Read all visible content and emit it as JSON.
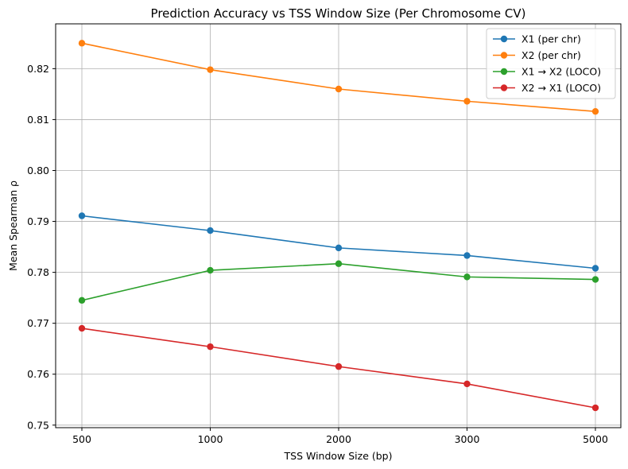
{
  "chart_data": {
    "type": "line",
    "title": "Prediction Accuracy vs TSS Window Size (Per Chromosome CV)",
    "xlabel": "TSS Window Size (bp)",
    "ylabel": "Mean Spearman ρ",
    "categories": [
      "500",
      "1000",
      "2000",
      "3000",
      "5000"
    ],
    "ylim": [
      0.7495,
      0.8288
    ],
    "yticks": [
      "0.75",
      "0.76",
      "0.77",
      "0.78",
      "0.79",
      "0.80",
      "0.81",
      "0.82"
    ],
    "grid": true,
    "legend_position": "top-right",
    "series": [
      {
        "name": "X1 (per chr)",
        "color": "#1f77b4",
        "values": [
          0.7911,
          0.7882,
          0.7848,
          0.7833,
          0.7808
        ]
      },
      {
        "name": "X2  (per chr)",
        "color": "#ff7f0e",
        "values": [
          0.825,
          0.8198,
          0.816,
          0.8136,
          0.8116
        ]
      },
      {
        "name": "X1 → X2 (LOCO)",
        "color": "#2ca02c",
        "values": [
          0.7745,
          0.7804,
          0.7817,
          0.7791,
          0.7786
        ]
      },
      {
        "name": "X2 → X1 (LOCO)",
        "color": "#d62728",
        "values": [
          0.769,
          0.7654,
          0.7615,
          0.7581,
          0.7534
        ]
      }
    ]
  }
}
